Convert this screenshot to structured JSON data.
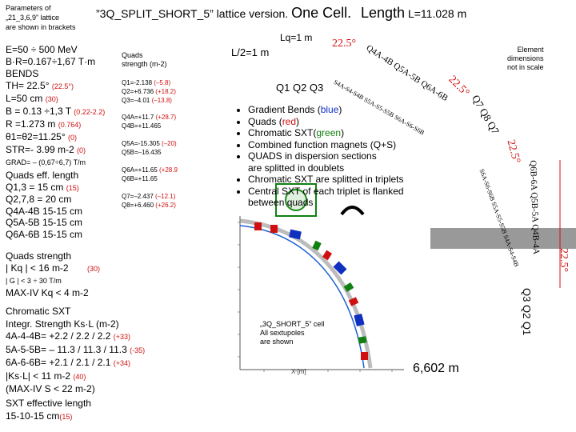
{
  "header": {
    "params_note": [
      "Parameters of",
      "„21_3,6,9” lattice",
      "are shown in brackets"
    ],
    "title_main": "”3Q_SPLIT_SHORT_5”  lattice version.",
    "title_one_cell": "One Cell.",
    "title_length_big": "Length",
    "title_length_small": "L=11.028 m",
    "lq": "Lq=1 m",
    "half_length": "L/2=1 m"
  },
  "left_params": {
    "energy": "E=50 ÷ 500 MeV",
    "brho": "B·R=0.167÷1,67 T·m",
    "bends_label": "BENDS",
    "th_value": "TH= 22.5°",
    "th_old": "(22.5°)",
    "l_value": "L=50 cm",
    "l_old": "(30)",
    "b_value": "B = 0.13 ÷1,3 T",
    "b_old": "(0.22-2.2)",
    "r_value": "R =1.273 m",
    "r_old": "(0.764)",
    "theta_value": "θ1=θ2=11.25°",
    "theta_old": "(0)",
    "str_value": "STR=- 3.99 m-2",
    "str_old": "(0)",
    "grad": "GRAD= – (0,67÷6,7) T/m"
  },
  "quads_strength_table": {
    "title_l1": "Quads",
    "title_l2": "strength (m-2)",
    "q1": "Q1=-2.138",
    "q1_old": "(–5.8)",
    "q2": "Q2=+6.736",
    "q2_old": "(+18.2)",
    "q3": "Q3=–4.01",
    "q3_old": "(–13.8)",
    "q4a": "Q4A=+11.7",
    "q4a_old": "(+28.7)",
    "q4b": "Q4B=+11.465",
    "q5a": "Q5A=-15.305",
    "q5a_old": "(–20)",
    "q5b": "Q5B=–16.435",
    "q6a": "Q6A=+11.65",
    "q6a_old": "(+28.9",
    "q6b": "Q6B=+11.65",
    "q7": "Q7=–2.437",
    "q7_old": "(–12.1)",
    "q8": "Q8=+6.460",
    "q8_old": "(+26.2)"
  },
  "quads_eff_length": {
    "title": "Quads eff. length",
    "q13": "Q1,3 = 15 cm",
    "q13_old": "(15)",
    "q278": "Q2,7,8 = 20 cm",
    "q4": "Q4A-4B  15-15 cm",
    "q5": "Q5A-5B  15-15 cm",
    "q6": "Q6A-6B  15-15 cm"
  },
  "quads_strength": {
    "title": "Quads strength",
    "kq": "| Kq | < 16 m-2",
    "kq_old": "(30)",
    "g": "| G | <  3 ÷ 30  T/m",
    "maxiv": "MAX-IV Kq < 4 m-2"
  },
  "chromatic": {
    "title1": "Chromatic SXT",
    "title2": "Integr. Strength Ks·L (m-2)",
    "s4": "4A-4-4B= +2.2 / 2.2 / 2.2",
    "s4_old": "(+33)",
    "s5": "5A-5-5B= – 11.3 / 11.3 / 11.3",
    "s5_old": "(-35)",
    "s6": "6A-6-6B= +2.1 / 2.1 / 2.1",
    "s6_old": "(+34)",
    "ksl": "|Ks·L| < 11 m-2",
    "ksl_old": "(40)",
    "maxiv": "(MAX-IV S < 22 m-2)"
  },
  "sxt_length": {
    "title": "SXT effective length",
    "value": "15-10-15 cm",
    "old": "(15)"
  },
  "bullets": {
    "items": [
      {
        "pre": "Gradient Bends (",
        "hl": "blue",
        "post": ")"
      },
      {
        "pre": "Quads  (",
        "hl": "red",
        "post": ")"
      },
      {
        "pre": "Chromatic SXT(",
        "hl": "green",
        "post": ")"
      },
      {
        "pre": "Combined function magnets (Q+S)",
        "hl": "",
        "post": ""
      },
      {
        "pre": "QUADS in dispersion sections",
        "hl": "",
        "post": ""
      }
    ],
    "q_split_line": "are splitted in doublets",
    "sxt": "Chromatic SXT are splitted in triplets",
    "central": "Central SXT of each triplet is flanked",
    "between": "between quads"
  },
  "diagram_labels": {
    "q123": "Q1  Q2  Q3",
    "angle1": "22.5°",
    "angle2": "22.5°",
    "angle3": "22.5°",
    "angle4": "22.5°",
    "top_seq": "Q4A-4B Q5A-5B Q6A-6B",
    "sxt_seq1": "S4A-S4-S4B  S5A-S5-S5B  S6A-S6-S6B",
    "q78": "Q7  Q8  Q7",
    "right_seq": "Q6B-6A Q5B-5A Q4B-4A",
    "sxt_seq2": "S6A-S6-S6B  S5A-S5-S5B  S4A-S4-S4B",
    "q321": "Q3  Q2  Q1",
    "element_note": [
      "Element",
      "dimensions",
      "not in scale"
    ],
    "plot_note": [
      "„3Q_SHORT_5” cell",
      "All sextupoles",
      "are shown"
    ],
    "x_axis": "X [m]",
    "dist": "6,602 m"
  },
  "colors": {
    "quad": "#d01010",
    "bend": "#1030c0",
    "sxt": "#108010",
    "accent_red": "#d01010"
  }
}
